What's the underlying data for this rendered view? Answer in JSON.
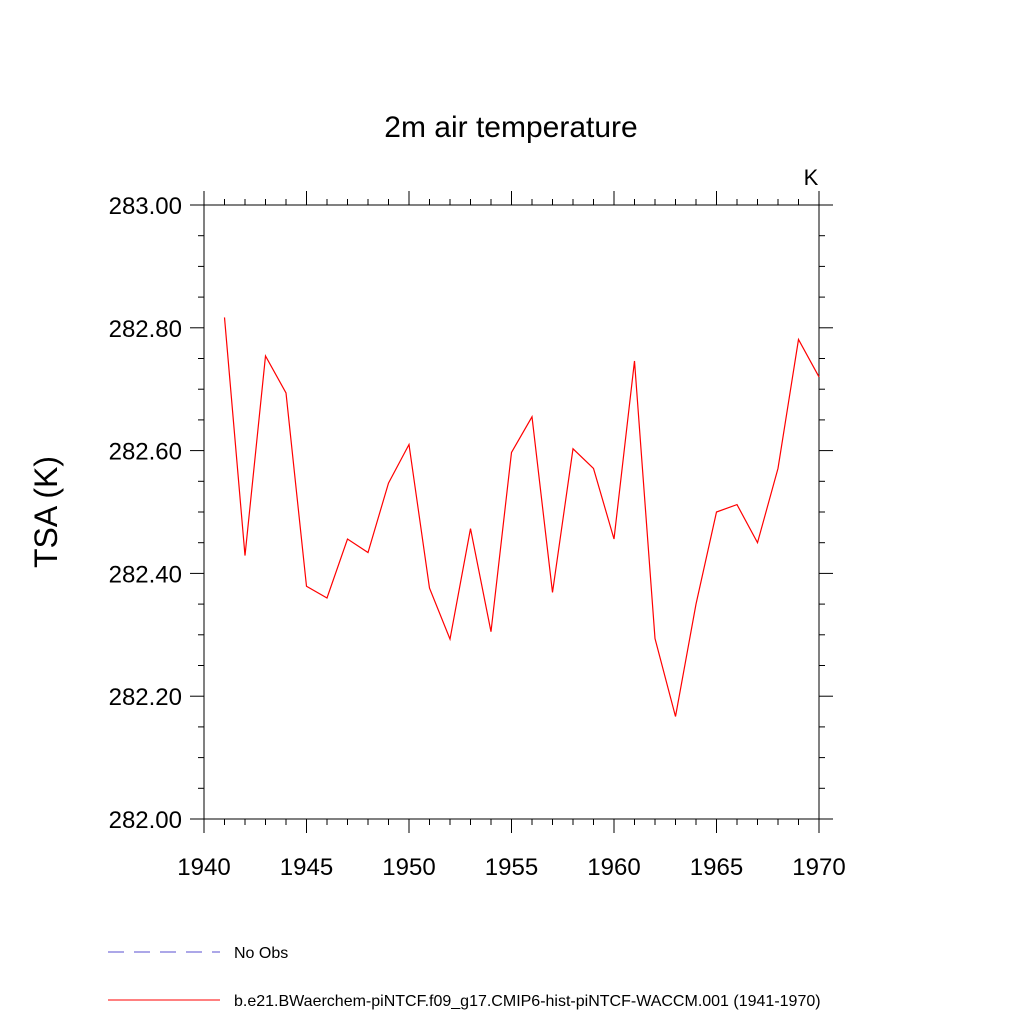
{
  "chart_data": {
    "type": "line",
    "title": "2m air temperature",
    "units_label": "K",
    "ylabel": "TSA  (K)",
    "xlabel": "",
    "xlim": [
      1940,
      1970
    ],
    "ylim": [
      282.0,
      283.0
    ],
    "x_ticks": [
      1940,
      1945,
      1950,
      1955,
      1960,
      1965,
      1970
    ],
    "x_tick_labels": [
      "1940",
      "1945",
      "1950",
      "1955",
      "1960",
      "1965",
      "1970"
    ],
    "y_ticks": [
      282.0,
      282.2,
      282.4,
      282.6,
      282.8,
      283.0
    ],
    "y_tick_labels": [
      "282.00",
      "282.20",
      "282.40",
      "282.60",
      "282.80",
      "283.00"
    ],
    "grid": false,
    "legend_position": "bottom-left",
    "series": [
      {
        "name": "b.e21.BWaerchem-piNTCF.f09_g17.CMIP6-hist-piNTCF-WACCM.001 (1941-1970)",
        "color": "#ff0000",
        "dash": "solid",
        "x": [
          1941,
          1942,
          1943,
          1944,
          1945,
          1946,
          1947,
          1948,
          1949,
          1950,
          1951,
          1952,
          1953,
          1954,
          1955,
          1956,
          1957,
          1958,
          1959,
          1960,
          1961,
          1962,
          1963,
          1964,
          1965,
          1966,
          1967,
          1968,
          1969,
          1970
        ],
        "y": [
          282.817,
          282.429,
          282.754,
          282.694,
          282.379,
          282.36,
          282.456,
          282.434,
          282.547,
          282.61,
          282.376,
          282.293,
          282.473,
          282.305,
          282.597,
          282.655,
          282.369,
          282.603,
          282.571,
          282.456,
          282.746,
          282.294,
          282.167,
          282.35,
          282.5,
          282.512,
          282.45,
          282.571,
          282.781,
          282.72
        ]
      }
    ],
    "legend": [
      {
        "label": "No Obs",
        "color": "#5a4fd0",
        "dash": "dashed"
      },
      {
        "label": "b.e21.BWaerchem-piNTCF.f09_g17.CMIP6-hist-piNTCF-WACCM.001 (1941-1970)",
        "color": "#ff0000",
        "dash": "solid"
      }
    ]
  }
}
